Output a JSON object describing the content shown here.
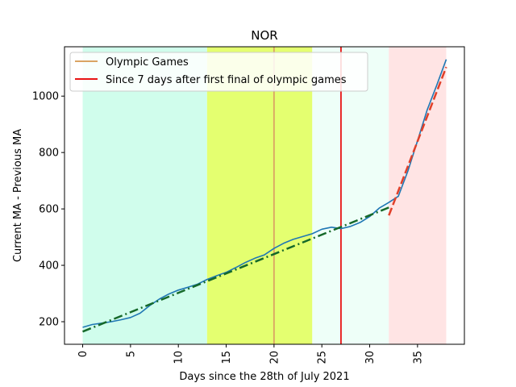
{
  "chart_data": {
    "type": "line",
    "title": "NOR",
    "xlabel": "Days since the 28th of July 2021",
    "ylabel": "Current MA - Previous MA",
    "xlim": [
      -1.9,
      39.9
    ],
    "ylim": [
      120,
      1175
    ],
    "xticks": [
      0,
      5,
      10,
      15,
      20,
      25,
      30,
      35
    ],
    "yticks": [
      200,
      400,
      600,
      800,
      1000
    ],
    "legend_position": "top-left",
    "shaded_regions": [
      {
        "x0": 0,
        "x1": 13,
        "color": "#d0fdec"
      },
      {
        "x0": 13,
        "x1": 24,
        "color": "#e4ff70"
      },
      {
        "x0": 24,
        "x1": 32,
        "color": "#eefff8"
      },
      {
        "x0": 32,
        "x1": 38,
        "color": "#ffe4e4"
      }
    ],
    "vertical_lines": [
      {
        "x": 20,
        "color": "#daa464",
        "legend": "Olympic Games"
      },
      {
        "x": 27,
        "color": "#e81414",
        "legend": "Since 7 days after first final of olympic games"
      }
    ],
    "series": [
      {
        "color": "#1f77b4",
        "style": "solid",
        "x": [
          0,
          1,
          2,
          3,
          4,
          5,
          6,
          7,
          8,
          9,
          10,
          11,
          12,
          13,
          14,
          15,
          16,
          17,
          18,
          19,
          20,
          21,
          22,
          23,
          24,
          25,
          26,
          27,
          28,
          29,
          30,
          31,
          32,
          33,
          34,
          35,
          36,
          37,
          38
        ],
        "y": [
          180,
          190,
          195,
          200,
          207,
          215,
          230,
          257,
          280,
          298,
          312,
          322,
          333,
          350,
          363,
          375,
          392,
          410,
          425,
          437,
          460,
          478,
          492,
          502,
          512,
          528,
          535,
          530,
          538,
          552,
          573,
          603,
          623,
          645,
          735,
          842,
          950,
          1038,
          1130
        ]
      },
      {
        "color": "#16692a",
        "style": "dashdot",
        "x": [
          0,
          32
        ],
        "y": [
          165,
          605
        ]
      },
      {
        "color": "#e0402a",
        "style": "dashed",
        "x": [
          32,
          38
        ],
        "y": [
          577,
          1103
        ]
      }
    ]
  }
}
